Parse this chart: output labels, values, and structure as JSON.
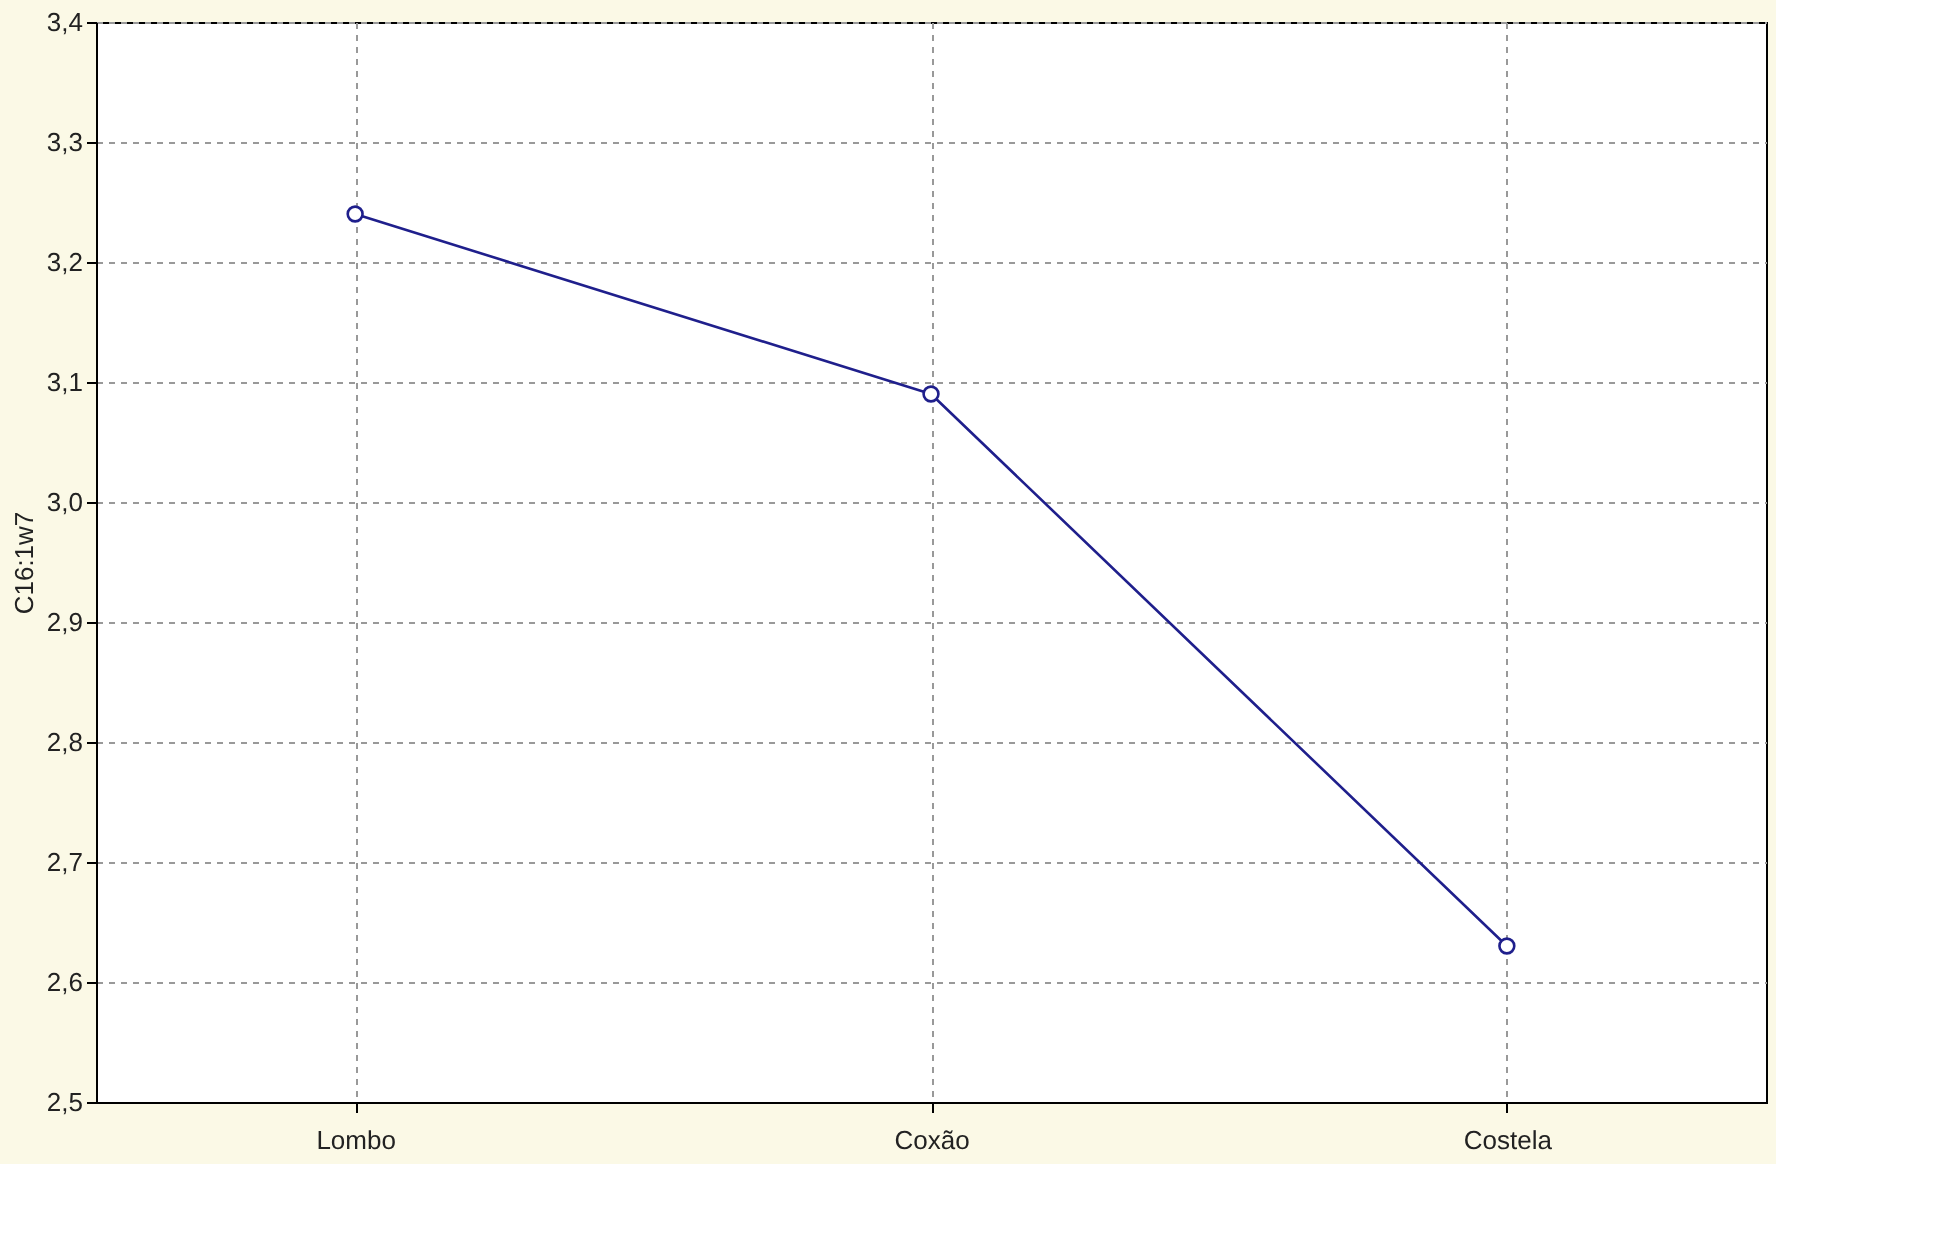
{
  "chart_data": {
    "type": "line",
    "ylabel": "C16:1w7",
    "categories": [
      "Lombo",
      "Coxão",
      "Costela"
    ],
    "series": [
      {
        "color": "#1f1f8c",
        "values": [
          3.24,
          3.09,
          2.63
        ]
      }
    ],
    "ylim": [
      2.5,
      3.4
    ],
    "yticks": [
      {
        "value": 2.5,
        "label": "2,5"
      },
      {
        "value": 2.6,
        "label": "2,6"
      },
      {
        "value": 2.7,
        "label": "2,7"
      },
      {
        "value": 2.8,
        "label": "2,8"
      },
      {
        "value": 2.9,
        "label": "2,9"
      },
      {
        "value": 3.0,
        "label": "3,0"
      },
      {
        "value": 3.1,
        "label": "3,1"
      },
      {
        "value": 3.2,
        "label": "3,2"
      },
      {
        "value": 3.3,
        "label": "3,3"
      },
      {
        "value": 3.4,
        "label": "3,4"
      }
    ],
    "grid": true,
    "marker": "circle",
    "line_style": "solid"
  }
}
